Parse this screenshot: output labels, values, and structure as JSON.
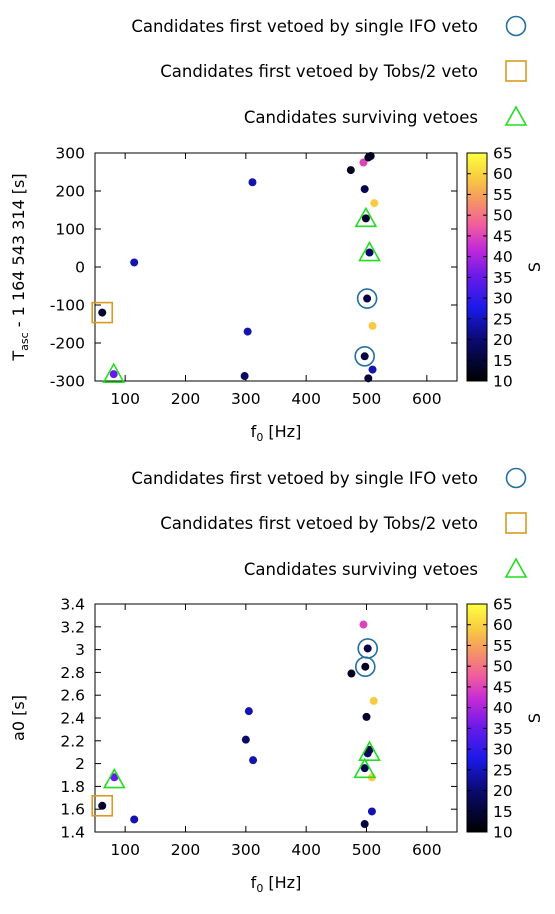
{
  "chart_data": [
    {
      "type": "scatter",
      "xlabel": "f",
      "xlabel_sub": "0",
      "xlabel_unit": " [Hz]",
      "ylabel": "T",
      "ylabel_sub": "asc",
      "ylabel_rest": " - 1 164 543 314 [s]",
      "xlim": [
        50,
        650
      ],
      "ylim": [
        -300,
        300
      ],
      "x_ticks": [
        100,
        200,
        300,
        400,
        500,
        600
      ],
      "y_ticks": [
        -300,
        -200,
        -100,
        0,
        100,
        200,
        300
      ],
      "colorbar_label": "S",
      "colorbar_range": [
        10,
        65
      ],
      "colorbar_ticks": [
        10,
        15,
        20,
        25,
        30,
        35,
        40,
        45,
        50,
        55,
        60,
        65
      ],
      "legend": [
        {
          "label": "Candidates first vetoed by single IFO veto",
          "marker": "circle",
          "color": "#1f6fa0"
        },
        {
          "label": "Candidates first vetoed by Tobs/2 veto",
          "marker": "square",
          "color": "#d99a1f"
        },
        {
          "label": "Candidates surviving vetoes",
          "marker": "triangle",
          "color": "#22dd22"
        }
      ],
      "points": [
        {
          "x": 62,
          "y": -120,
          "s": 14
        },
        {
          "x": 81,
          "y": -282,
          "s": 35
        },
        {
          "x": 115,
          "y": 12,
          "s": 24
        },
        {
          "x": 298,
          "y": -287,
          "s": 19
        },
        {
          "x": 303,
          "y": -170,
          "s": 24
        },
        {
          "x": 311,
          "y": 223,
          "s": 24
        },
        {
          "x": 474,
          "y": 255,
          "s": 13
        },
        {
          "x": 495,
          "y": 275,
          "s": 45
        },
        {
          "x": 497,
          "y": 205,
          "s": 17
        },
        {
          "x": 497,
          "y": -235,
          "s": 16
        },
        {
          "x": 499,
          "y": 128,
          "s": 14
        },
        {
          "x": 501,
          "y": -83,
          "s": 16
        },
        {
          "x": 503,
          "y": 288,
          "s": 13
        },
        {
          "x": 503,
          "y": -293,
          "s": 15
        },
        {
          "x": 505,
          "y": 38,
          "s": 19
        },
        {
          "x": 507,
          "y": 292,
          "s": 13
        },
        {
          "x": 510,
          "y": -155,
          "s": 59
        },
        {
          "x": 510,
          "y": -270,
          "s": 24
        },
        {
          "x": 513,
          "y": 168,
          "s": 59
        }
      ],
      "single_ifo_vetoed": [
        {
          "x": 501,
          "y": -83
        },
        {
          "x": 497,
          "y": -235
        }
      ],
      "tobs_vetoed": [
        {
          "x": 62,
          "y": -120
        }
      ],
      "surviving": [
        {
          "x": 81,
          "y": -282
        },
        {
          "x": 499,
          "y": 128
        },
        {
          "x": 505,
          "y": 38
        }
      ]
    },
    {
      "type": "scatter",
      "xlabel": "f",
      "xlabel_sub": "0",
      "xlabel_unit": " [Hz]",
      "ylabel": "a0 [s]",
      "ylabel_sub": "",
      "ylabel_rest": "",
      "xlim": [
        50,
        650
      ],
      "ylim": [
        1.4,
        3.4
      ],
      "x_ticks": [
        100,
        200,
        300,
        400,
        500,
        600
      ],
      "y_ticks": [
        1.4,
        1.6,
        1.8,
        2,
        2.2,
        2.4,
        2.6,
        2.8,
        3,
        3.2,
        3.4
      ],
      "colorbar_label": "S",
      "colorbar_range": [
        10,
        65
      ],
      "colorbar_ticks": [
        10,
        15,
        20,
        25,
        30,
        35,
        40,
        45,
        50,
        55,
        60,
        65
      ],
      "legend": [
        {
          "label": "Candidates first vetoed by single IFO veto",
          "marker": "circle",
          "color": "#1f6fa0"
        },
        {
          "label": "Candidates first vetoed by Tobs/2 veto",
          "marker": "square",
          "color": "#d99a1f"
        },
        {
          "label": "Candidates surviving vetoes",
          "marker": "triangle",
          "color": "#22dd22"
        }
      ],
      "points": [
        {
          "x": 62,
          "y": 1.63,
          "s": 14
        },
        {
          "x": 82,
          "y": 1.88,
          "s": 35
        },
        {
          "x": 115,
          "y": 1.51,
          "s": 24
        },
        {
          "x": 300,
          "y": 2.21,
          "s": 19
        },
        {
          "x": 305,
          "y": 2.46,
          "s": 24
        },
        {
          "x": 312,
          "y": 2.03,
          "s": 24
        },
        {
          "x": 475,
          "y": 2.79,
          "s": 13
        },
        {
          "x": 495,
          "y": 3.22,
          "s": 45
        },
        {
          "x": 497,
          "y": 1.96,
          "s": 17
        },
        {
          "x": 497,
          "y": 1.47,
          "s": 16
        },
        {
          "x": 498,
          "y": 2.85,
          "s": 13
        },
        {
          "x": 500,
          "y": 2.41,
          "s": 14
        },
        {
          "x": 502,
          "y": 3.01,
          "s": 16
        },
        {
          "x": 502,
          "y": 2.09,
          "s": 19
        },
        {
          "x": 505,
          "y": 2.12,
          "s": 17
        },
        {
          "x": 509,
          "y": 1.58,
          "s": 24
        },
        {
          "x": 509,
          "y": 1.88,
          "s": 59
        },
        {
          "x": 512,
          "y": 2.55,
          "s": 59
        }
      ],
      "single_ifo_vetoed": [
        {
          "x": 502,
          "y": 3.01
        },
        {
          "x": 498,
          "y": 2.85
        }
      ],
      "tobs_vetoed": [
        {
          "x": 62,
          "y": 1.63
        }
      ],
      "surviving": [
        {
          "x": 82,
          "y": 1.86
        },
        {
          "x": 497,
          "y": 1.95
        },
        {
          "x": 505,
          "y": 2.1
        }
      ]
    }
  ]
}
